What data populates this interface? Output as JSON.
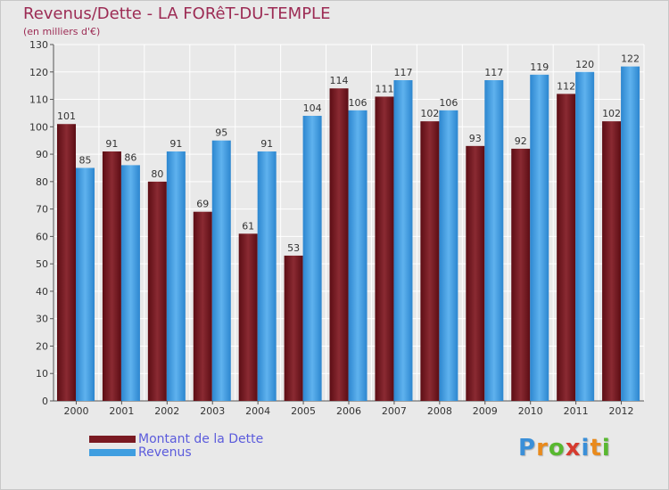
{
  "title": "Revenus/Dette - LA FORêT-DU-TEMPLE",
  "subtitle": "(en milliers d'€)",
  "colors": {
    "dette": "#7a1a22",
    "revenus": "#3f9ee0",
    "axis_text": "#333333",
    "grid": "#ffffff",
    "plot_bg": "#e9e9e9"
  },
  "legend": {
    "items": [
      {
        "label": "Montant de la Dette",
        "color": "#7a1a22"
      },
      {
        "label": "Revenus",
        "color": "#3f9ee0"
      }
    ]
  },
  "logo": {
    "letters": [
      {
        "char": "P",
        "color": "#3a8fd8"
      },
      {
        "char": "r",
        "color": "#e98a1c"
      },
      {
        "char": "o",
        "color": "#58b830"
      },
      {
        "char": "x",
        "color": "#d63b2f"
      },
      {
        "char": "i",
        "color": "#3a8fd8"
      },
      {
        "char": "t",
        "color": "#e98a1c"
      },
      {
        "char": "i",
        "color": "#58b830"
      }
    ]
  },
  "chart_data": {
    "type": "bar",
    "title": "Revenus/Dette - LA FORêT-DU-TEMPLE",
    "subtitle": "(en milliers d'€)",
    "categories": [
      "2000",
      "2001",
      "2002",
      "2003",
      "2004",
      "2005",
      "2006",
      "2007",
      "2008",
      "2009",
      "2010",
      "2011",
      "2012"
    ],
    "series": [
      {
        "name": "Montant de la Dette",
        "values": [
          101,
          91,
          80,
          69,
          61,
          53,
          114,
          111,
          102,
          93,
          92,
          112,
          102
        ]
      },
      {
        "name": "Revenus",
        "values": [
          85,
          86,
          91,
          95,
          91,
          104,
          106,
          117,
          106,
          117,
          119,
          120,
          122
        ]
      }
    ],
    "ylim": [
      0,
      130
    ],
    "yticks": [
      0,
      10,
      20,
      30,
      40,
      50,
      60,
      70,
      80,
      90,
      100,
      110,
      120,
      130
    ],
    "grid": true,
    "legend_position": "bottom-left"
  }
}
